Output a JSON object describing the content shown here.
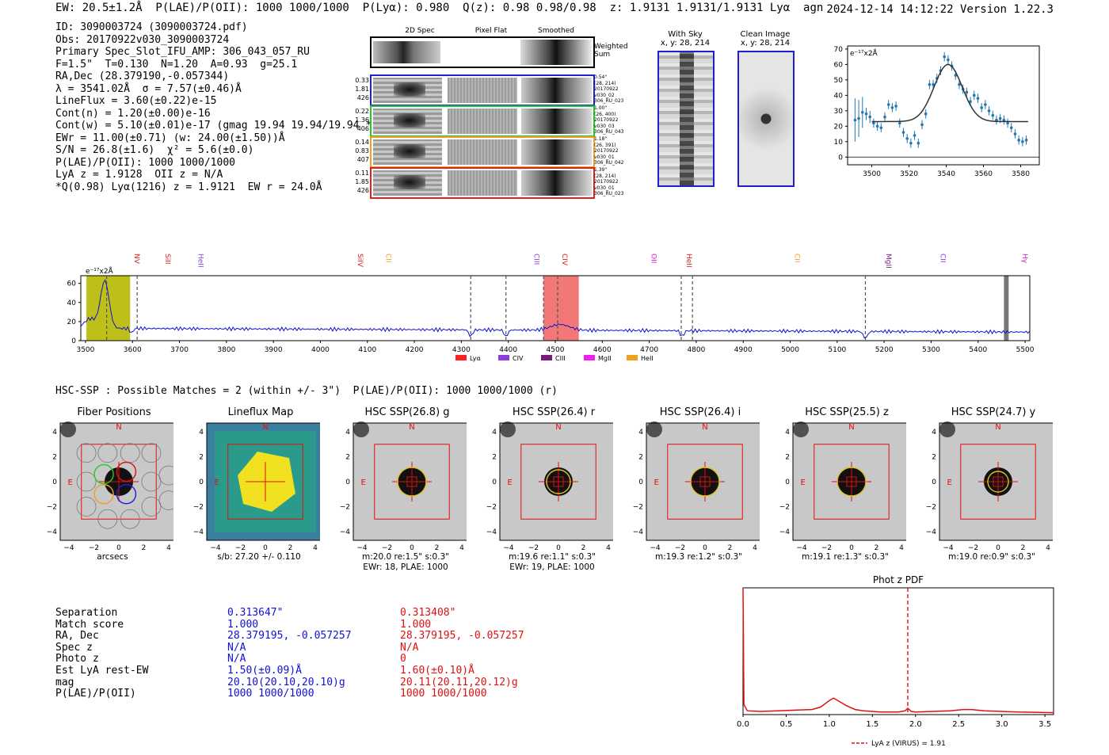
{
  "header": {
    "line": "EW: 20.5±1.2Å  P(LAE)/P(OII): 1000 1000/1000  P(Lyα): 0.980  Q(z): 0.98 0.98/0.98  z: 1.9131 1.9131/1.9131 Lyα  agn",
    "datetime": "2024-12-14 14:12:22",
    "version": "Version 1.22.3"
  },
  "info": [
    "ID: 3090003724 (3090003724.pdf)",
    "Obs: 20170922v030_3090003724",
    "Primary Spec_Slot_IFU_AMP: 306_043_057_RU",
    "F=1.5\"  T=0.130  N=1.20  A=0.93  g=25.1",
    "RA,Dec (28.379190,-0.057344)",
    "λ = 3541.02Å  σ = 7.57(±0.46)Å",
    "LineFlux = 3.60(±0.22)e-15",
    "Cont(n) = 1.20(±0.00)e-16",
    "Cont(w) = 5.10(±0.01)e-17 (gmag 19.94 19.94/19.94 *)",
    "EWr = 11.00(±0.71) (w: 24.00(±1.50))Å",
    "S/N = 26.8(±1.6)  χ² = 5.6(±0.0)",
    "P(LAE)/P(OII): 1000 1000/1000",
    "LyA z = 1.9128  OII z = N/A",
    "*Q(0.98) Lyα(1216) z = 1.9121  EW r = 24.0Å"
  ],
  "spec2d": {
    "col_titles": [
      "2D Spec",
      "Pixel Flat",
      "Smoothed"
    ],
    "weighted_label": "Weighted Sum",
    "rows": [
      {
        "left": [
          "0.33",
          "1.81",
          "426"
        ],
        "right": [
          "0.54\"",
          "(28, 214)",
          "20170922",
          "v030_02",
          "306_RU_023"
        ],
        "color": "#2020d0"
      },
      {
        "left": [
          "0.22",
          "1.36",
          "406"
        ],
        "right": [
          "1.00\"",
          "(26, 400)",
          "20170922",
          "v030_03",
          "306_RU_043"
        ],
        "color": "#22cc22"
      },
      {
        "left": [
          "0.14",
          "0.83",
          "407"
        ],
        "right": [
          "1.18\"",
          "(26, 391)",
          "20170922",
          "v030_01",
          "306_RU_042"
        ],
        "color": "#f0a020"
      },
      {
        "left": [
          "0.11",
          "1.85",
          "426"
        ],
        "right": [
          "1.39\"",
          "(28, 214)",
          "20170922",
          "v030_01",
          "306_RU_023"
        ],
        "color": "#e02020"
      }
    ]
  },
  "fiber_panels": {
    "with_sky": {
      "title": "With Sky",
      "coords": "x, y: 28, 214"
    },
    "clean": {
      "title": "Clean Image",
      "coords": "x, y: 28, 214"
    }
  },
  "chart_data": [
    {
      "type": "scatter",
      "name": "line-fit",
      "ylabel": "e⁻¹⁷x2Å",
      "xlim": [
        3487,
        3590
      ],
      "ylim": [
        -5,
        72
      ],
      "xticks": [
        3500,
        3520,
        3540,
        3560,
        3580
      ],
      "yticks": [
        0,
        10,
        20,
        30,
        40,
        50,
        60,
        70
      ],
      "points": [
        [
          3491,
          24,
          14
        ],
        [
          3493,
          25,
          12
        ],
        [
          3495,
          29,
          10
        ],
        [
          3497,
          28,
          4
        ],
        [
          3499,
          26,
          4
        ],
        [
          3501,
          22,
          3
        ],
        [
          3503,
          20,
          3
        ],
        [
          3505,
          19,
          3
        ],
        [
          3507,
          26,
          3
        ],
        [
          3509,
          34,
          3
        ],
        [
          3511,
          32,
          3
        ],
        [
          3513,
          33,
          3
        ],
        [
          3515,
          22,
          3
        ],
        [
          3517,
          16,
          3
        ],
        [
          3519,
          12,
          3
        ],
        [
          3521,
          9,
          3
        ],
        [
          3523,
          14,
          3
        ],
        [
          3525,
          9,
          3
        ],
        [
          3527,
          21,
          3
        ],
        [
          3529,
          28,
          3
        ],
        [
          3531,
          47,
          3
        ],
        [
          3533,
          47,
          3
        ],
        [
          3535,
          51,
          3
        ],
        [
          3537,
          56,
          3
        ],
        [
          3539,
          65,
          3
        ],
        [
          3541,
          63,
          3
        ],
        [
          3543,
          59,
          3
        ],
        [
          3545,
          53,
          3
        ],
        [
          3547,
          47,
          3
        ],
        [
          3549,
          44,
          3
        ],
        [
          3551,
          42,
          3
        ],
        [
          3553,
          36,
          3
        ],
        [
          3555,
          40,
          3
        ],
        [
          3557,
          38,
          3
        ],
        [
          3559,
          32,
          3
        ],
        [
          3561,
          34,
          3
        ],
        [
          3563,
          30,
          3
        ],
        [
          3565,
          27,
          3
        ],
        [
          3567,
          24,
          3
        ],
        [
          3569,
          25,
          3
        ],
        [
          3571,
          24,
          3
        ],
        [
          3573,
          22,
          3
        ],
        [
          3575,
          19,
          3
        ],
        [
          3577,
          15,
          3
        ],
        [
          3579,
          11,
          3
        ],
        [
          3581,
          10,
          3
        ],
        [
          3583,
          11,
          3
        ]
      ],
      "fit": {
        "center": 3541.02,
        "sigma": 7.57,
        "amplitude": 37,
        "baseline": 23,
        "xrange": [
          3500,
          3584
        ]
      }
    },
    {
      "type": "line",
      "name": "full-spectrum",
      "ylabel": "e⁻¹⁷x2Å",
      "xlim": [
        3490,
        5510
      ],
      "ylim": [
        0,
        68
      ],
      "xticks": [
        3500,
        3600,
        3700,
        3800,
        3900,
        4000,
        4100,
        4200,
        4300,
        4400,
        4500,
        4600,
        4700,
        4800,
        4900,
        5000,
        5100,
        5200,
        5300,
        5400,
        5500
      ],
      "yticks": [
        0,
        20,
        40,
        60
      ],
      "line_markers": [
        {
          "label": "NV",
          "x": 3605,
          "color": "#d82020"
        },
        {
          "label": "SiII",
          "x": 3670,
          "color": "#d82020"
        },
        {
          "label": "HeII",
          "x": 3740,
          "color": "#8a40d8"
        },
        {
          "label": "SiIV",
          "x": 4080,
          "color": "#d82020"
        },
        {
          "label": "CII",
          "x": 4140,
          "color": "#f0a020"
        },
        {
          "label": "CIII",
          "x": 4455,
          "color": "#8a40d8"
        },
        {
          "label": "CIV",
          "x": 4515,
          "color": "#d82020"
        },
        {
          "label": "OII",
          "x": 4705,
          "color": "#d020d0"
        },
        {
          "label": "HeII",
          "x": 4780,
          "color": "#d82020"
        },
        {
          "label": "CII",
          "x": 5010,
          "color": "#f0a020"
        },
        {
          "label": "MgII",
          "x": 5205,
          "color": "#7a1a7a"
        },
        {
          "label": "CII",
          "x": 5320,
          "color": "#8a40d8"
        },
        {
          "label": "Hγ",
          "x": 5495,
          "color": "#d020d0"
        }
      ],
      "dashed_lines": [
        3545,
        3610,
        4320,
        4395,
        4475,
        4505,
        4768,
        4792,
        5160
      ],
      "highlight_region": [
        4475,
        4550
      ],
      "yellow_region": [
        3502,
        3595
      ],
      "legend": [
        {
          "label": "Lyα",
          "color": "#ff2020"
        },
        {
          "label": "CIV",
          "color": "#8a40d8"
        },
        {
          "label": "CIII",
          "color": "#7a1a7a"
        },
        {
          "label": "MgII",
          "color": "#f020f0"
        },
        {
          "label": "HeII",
          "color": "#f0a020"
        }
      ]
    },
    {
      "type": "line",
      "name": "phot-z-pdf",
      "title": "Phot z PDF",
      "xlim": [
        0,
        3.6
      ],
      "xticks": [
        0.0,
        0.5,
        1.0,
        1.5,
        2.0,
        2.5,
        3.0,
        3.5
      ],
      "xtick_labels": [
        "0.0",
        "0.5",
        "1.0",
        "1.5",
        "2.0",
        "2.5",
        "3.0",
        "3.5"
      ],
      "marker_z": 1.91,
      "legend": "LyA z (VIRUS) = 1.91",
      "x": [
        0.0,
        0.01,
        0.05,
        0.2,
        0.4,
        0.6,
        0.8,
        0.9,
        1.0,
        1.05,
        1.1,
        1.2,
        1.3,
        1.4,
        1.5,
        1.6,
        1.7,
        1.8,
        1.88,
        1.91,
        1.95,
        2.0,
        2.2,
        2.4,
        2.55,
        2.65,
        2.8,
        3.0,
        3.2,
        3.4,
        3.6
      ],
      "y": [
        1.0,
        0.08,
        0.03,
        0.025,
        0.03,
        0.035,
        0.04,
        0.06,
        0.11,
        0.13,
        0.11,
        0.07,
        0.04,
        0.03,
        0.025,
        0.02,
        0.02,
        0.02,
        0.03,
        0.05,
        0.025,
        0.02,
        0.025,
        0.03,
        0.04,
        0.04,
        0.03,
        0.025,
        0.02,
        0.018,
        0.015
      ]
    }
  ],
  "hsc": {
    "header": "HSC-SSP : Possible Matches = 2 (within +/- 3\")  P(LAE)/P(OII): 1000 1000/1000 (r)",
    "cutouts": [
      {
        "title": "Fiber Positions",
        "caption": [
          "arcsecs"
        ]
      },
      {
        "title": "Lineflux Map",
        "caption": [
          "s/b: 27.20 +/- 0.110"
        ]
      },
      {
        "title": "HSC SSP(26.8) g",
        "caption": [
          "m:20.0  re:1.5\"  s:0.3\"",
          "EWr: 18, PLAE: 1000"
        ]
      },
      {
        "title": "HSC SSP(26.4) r",
        "caption": [
          "m:19.6  re:1.1\"  s:0.3\"",
          "EWr: 19, PLAE: 1000"
        ]
      },
      {
        "title": "HSC SSP(26.4) i",
        "caption": [
          "m:19.3  re:1.2\"  s:0.3\""
        ]
      },
      {
        "title": "HSC SSP(25.5) z",
        "caption": [
          "m:19.1  re:1.3\"  s:0.3\""
        ]
      },
      {
        "title": "HSC SSP(24.7) y",
        "caption": [
          "m:19.0  re:0.9\"  s:0.3\""
        ]
      }
    ],
    "axis_ticks": [
      "−4",
      "−2",
      "0",
      "2",
      "4"
    ],
    "north_label": "N",
    "east_label": "E"
  },
  "matches": {
    "labels": [
      "Separation",
      "Match score",
      "RA, Dec",
      "Spec z",
      "Photo z",
      "Est LyA rest-EW",
      "mag",
      "P(LAE)/P(OII)"
    ],
    "match1": [
      "0.313647\"",
      "1.000",
      "28.379195, -0.057257",
      "N/A",
      "N/A",
      "1.50(±0.09)Å",
      "20.10(20.10,20.10)g",
      "1000 1000/1000"
    ],
    "match2": [
      "0.313408\"",
      "1.000",
      "28.379195, -0.057257",
      "N/A",
      "0",
      "1.60(±0.10)Å",
      "20.11(20.11,20.12)g",
      "1000 1000/1000"
    ]
  },
  "colors": {
    "blue": "#1f1fd0",
    "red": "#e01010",
    "accent_blue": "#1f77b4"
  }
}
